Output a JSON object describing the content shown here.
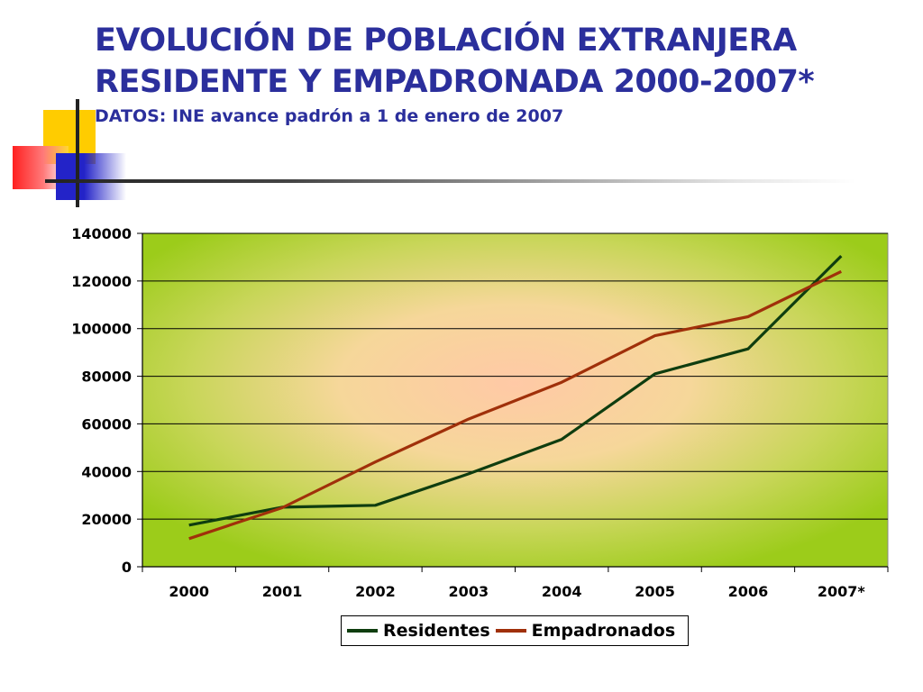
{
  "slide": {
    "title_line1": "EVOLUCIÓN DE POBLACIÓN EXTRANJERA",
    "title_line2": "RESIDENTE Y EMPADRONADA 2000-2007*",
    "subtitle": "DATOS: INE avance padrón a 1 de enero de 2007"
  },
  "chart_data": {
    "type": "line",
    "title": "",
    "xlabel": "",
    "ylabel": "",
    "categories": [
      "2000",
      "2001",
      "2002",
      "2003",
      "2004",
      "2005",
      "2006",
      "2007*"
    ],
    "ylim": [
      0,
      140000
    ],
    "yticks": [
      "0",
      "20000",
      "40000",
      "60000",
      "80000",
      "100000",
      "120000",
      "140000"
    ],
    "grid": true,
    "legend_position": "bottom",
    "series": [
      {
        "name": "Residentes",
        "color": "#0f3d0f",
        "values": [
          17500,
          25000,
          25800,
          39000,
          53500,
          81000,
          91500,
          130500
        ]
      },
      {
        "name": "Empadronados",
        "color": "#a0300a",
        "values": [
          11800,
          24800,
          44000,
          62000,
          77500,
          97000,
          105000,
          124000
        ]
      }
    ]
  }
}
